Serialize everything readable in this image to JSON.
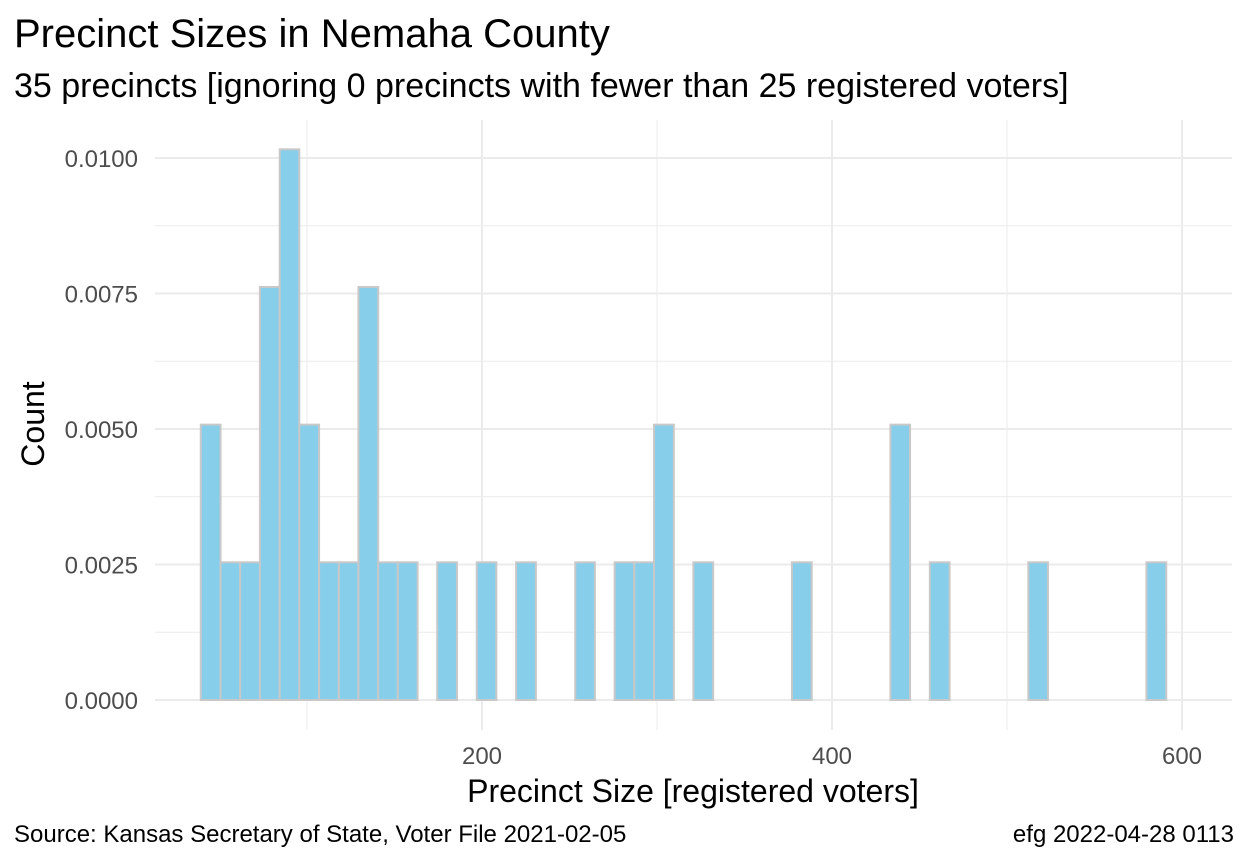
{
  "title": "Precinct Sizes in Nemaha County",
  "subtitle": "35 precincts [ignoring 0 precincts with fewer than 25 registered voters]",
  "caption": {
    "source": "Source:  Kansas Secretary of State, Voter File  2021-02-05",
    "credit": "efg 2022-04-28 0113"
  },
  "colors": {
    "bar_fill": "#87ceeb",
    "bar_outline": "#c8c8c8",
    "grid": "#ebebeb",
    "tick_text": "#4d4d4d"
  },
  "chart_data": {
    "type": "bar",
    "xlabel": "Precinct Size [registered voters]",
    "ylabel": "Count",
    "xlim": [
      0,
      620
    ],
    "ylim": [
      0,
      0.0102
    ],
    "xticks": [
      200,
      400,
      600
    ],
    "yticks": [
      0.0,
      0.0025,
      0.005,
      0.0075,
      0.01
    ],
    "ytick_labels": [
      "0.0000",
      "0.0025",
      "0.0050",
      "0.0075",
      "0.0100"
    ],
    "grid": true,
    "bin_width": 11.26,
    "bins": [
      {
        "x_start": 39.3,
        "x_end": 50.6,
        "value": 0.00508
      },
      {
        "x_start": 50.6,
        "x_end": 61.8,
        "value": 0.00254
      },
      {
        "x_start": 61.8,
        "x_end": 73.1,
        "value": 0.00254
      },
      {
        "x_start": 73.1,
        "x_end": 84.4,
        "value": 0.00762
      },
      {
        "x_start": 84.4,
        "x_end": 95.6,
        "value": 0.01016
      },
      {
        "x_start": 95.6,
        "x_end": 106.9,
        "value": 0.00508
      },
      {
        "x_start": 106.9,
        "x_end": 118.2,
        "value": 0.00254
      },
      {
        "x_start": 118.2,
        "x_end": 129.4,
        "value": 0.00254
      },
      {
        "x_start": 129.4,
        "x_end": 140.7,
        "value": 0.00762
      },
      {
        "x_start": 140.7,
        "x_end": 151.9,
        "value": 0.00254
      },
      {
        "x_start": 151.9,
        "x_end": 163.2,
        "value": 0.00254
      },
      {
        "x_start": 174.4,
        "x_end": 185.7,
        "value": 0.00254
      },
      {
        "x_start": 197.0,
        "x_end": 208.2,
        "value": 0.00254
      },
      {
        "x_start": 219.5,
        "x_end": 230.8,
        "value": 0.00254
      },
      {
        "x_start": 253.3,
        "x_end": 264.5,
        "value": 0.00254
      },
      {
        "x_start": 275.8,
        "x_end": 287.0,
        "value": 0.00254
      },
      {
        "x_start": 287.0,
        "x_end": 298.3,
        "value": 0.00254
      },
      {
        "x_start": 298.3,
        "x_end": 309.6,
        "value": 0.00508
      },
      {
        "x_start": 320.8,
        "x_end": 332.1,
        "value": 0.00254
      },
      {
        "x_start": 377.1,
        "x_end": 388.4,
        "value": 0.00254
      },
      {
        "x_start": 433.4,
        "x_end": 444.6,
        "value": 0.00508
      },
      {
        "x_start": 455.9,
        "x_end": 467.2,
        "value": 0.00254
      },
      {
        "x_start": 512.2,
        "x_end": 523.4,
        "value": 0.00254
      },
      {
        "x_start": 579.7,
        "x_end": 591.0,
        "value": 0.00254
      }
    ]
  }
}
